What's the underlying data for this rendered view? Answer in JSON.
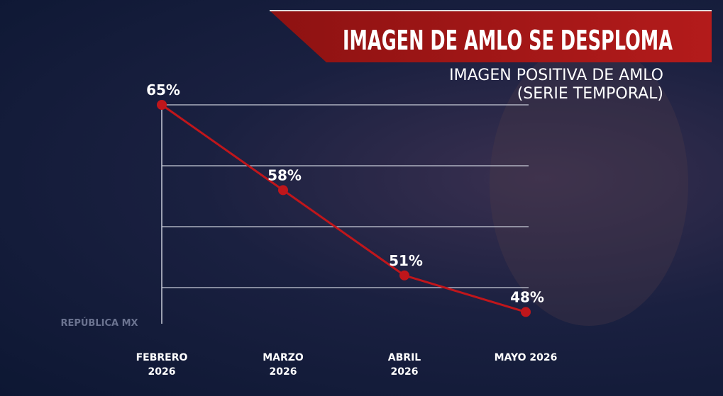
{
  "chart_data": {
    "type": "line",
    "title": "IMAGEN DE AMLO SE DESPLOMA",
    "subtitle": [
      "IMAGEN POSITIVA DE AMLO",
      "(SERIE TEMPORAL)"
    ],
    "watermark": "REPÚBLICA MX",
    "categories": [
      "FEBRERO 2026",
      "MARZO 2026",
      "ABRIL 2026",
      "MAYO 2026"
    ],
    "values": [
      65,
      58,
      51,
      48
    ],
    "value_labels": [
      "65%",
      "58%",
      "51%",
      "48%"
    ],
    "color": "#c0161b",
    "ylim": [
      47,
      65
    ],
    "yticks": [
      50,
      55,
      60,
      65
    ],
    "grid": true
  }
}
